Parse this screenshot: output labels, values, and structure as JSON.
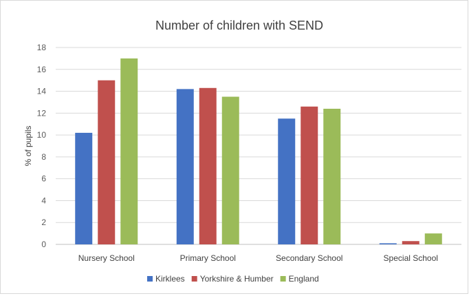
{
  "chart_data": {
    "type": "bar",
    "title": "Number of children with SEND",
    "xlabel": "",
    "ylabel": "% of pupils",
    "ylim": [
      0,
      18
    ],
    "yticks": [
      0,
      2,
      4,
      6,
      8,
      10,
      12,
      14,
      16,
      18
    ],
    "grid": true,
    "legend_position": "bottom",
    "categories": [
      "Nursery School",
      "Primary School",
      "Secondary School",
      "Special School"
    ],
    "series": [
      {
        "name": "Kirklees",
        "color": "#4472c4",
        "values": [
          10.2,
          14.2,
          11.5,
          0.1
        ]
      },
      {
        "name": "Yorkshire & Humber",
        "color": "#c0504d",
        "values": [
          15.0,
          14.3,
          12.6,
          0.3
        ]
      },
      {
        "name": "England",
        "color": "#9bbb59",
        "values": [
          17.0,
          13.5,
          12.4,
          1.0
        ]
      }
    ]
  }
}
